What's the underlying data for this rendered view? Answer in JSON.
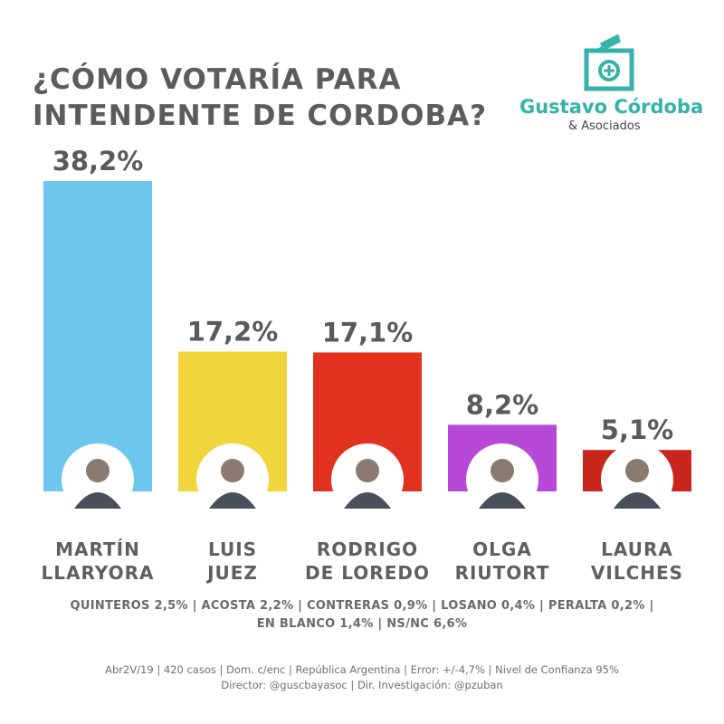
{
  "title": {
    "line1": "¿CÓMO VOTARÍA PARA",
    "line2": "INTENDENTE DE CORDOBA?"
  },
  "logo": {
    "name": "Gustavo Córdoba",
    "sub": "& Asociados",
    "icon": "ballot-box-icon",
    "color": "#35b2aa"
  },
  "chart_data": {
    "type": "bar",
    "categories": [
      [
        "MARTÍN",
        "LLARYORA"
      ],
      [
        "LUIS",
        "JUEZ"
      ],
      [
        "RODRIGO",
        "DE LOREDO"
      ],
      [
        "OLGA",
        "RIUTORT"
      ],
      [
        "LAURA",
        "VILCHES"
      ]
    ],
    "values": [
      38.2,
      17.2,
      17.1,
      8.2,
      5.1
    ],
    "value_labels": [
      "38,2%",
      "17,2%",
      "17,1%",
      "8,2%",
      "5,1%"
    ],
    "colors": [
      "#6cc6ee",
      "#f0d53d",
      "#e0321f",
      "#b748d8",
      "#c8251c"
    ],
    "photo_icons": [
      "candidate-photo-icon",
      "candidate-photo-icon",
      "candidate-photo-icon",
      "candidate-photo-icon",
      "candidate-photo-icon"
    ],
    "ylim": [
      0,
      40
    ]
  },
  "others": {
    "line1": "QUINTEROS 2,5% | ACOSTA 2,2% | CONTRERAS 0,9% | LOSANO 0,4% | PERALTA 0,2% |",
    "line2": "EN BLANCO 1,4% | NS/NC 6,6%"
  },
  "meta": {
    "line1": "Abr2V/19 | 420 casos | Dom. c/enc | República Argentina | Error: +/-4,7% | Nivel de Confianza 95%",
    "line2": "Director: @guscbayasoc | Dir. Investigación: @pzuban"
  }
}
